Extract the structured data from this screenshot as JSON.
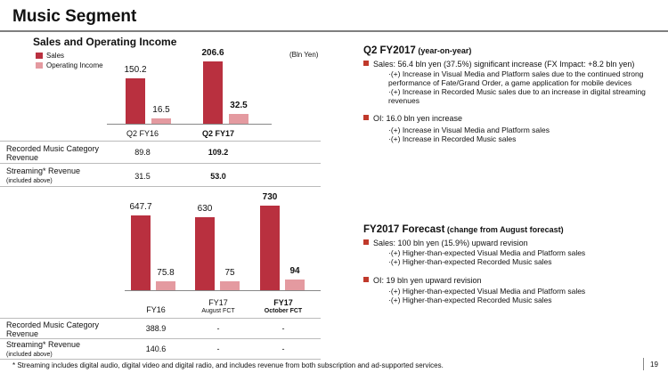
{
  "title": "Music Segment",
  "left_top": {
    "heading": "Sales and Operating Income",
    "unit": "(Bln Yen)",
    "legend": {
      "sales": "Sales",
      "oi": "Operating Income"
    },
    "colors": {
      "sales": "#b9303f",
      "oi": "#e49aa0"
    },
    "categories": [
      "Q2 FY16",
      "Q2 FY17"
    ],
    "rows": [
      {
        "label": "Recorded Music Category Revenue",
        "values": [
          "89.8",
          "109.2"
        ]
      },
      {
        "label": "Streaming* Revenue",
        "note": "(included above)",
        "values": [
          "31.5",
          "53.0"
        ]
      }
    ]
  },
  "left_bottom": {
    "categories": [
      "FY16",
      "FY17",
      "FY17"
    ],
    "cat_subs": [
      "",
      "August FCT",
      "October FCT"
    ],
    "rows": [
      {
        "label": "Recorded Music Category Revenue",
        "values": [
          "388.9",
          "-",
          "-"
        ]
      },
      {
        "label": "Streaming* Revenue",
        "note": "(included above)",
        "values": [
          "140.6",
          "-",
          "-"
        ]
      }
    ]
  },
  "chart_data": [
    {
      "type": "bar",
      "categories": [
        "Q2 FY16",
        "Q2 FY17"
      ],
      "series": [
        {
          "name": "Sales",
          "values": [
            150.2,
            206.6
          ]
        },
        {
          "name": "Operating Income",
          "values": [
            16.5,
            32.5
          ]
        }
      ],
      "labels": [
        "150.2",
        "206.6",
        "16.5",
        "32.5"
      ]
    },
    {
      "type": "bar",
      "categories": [
        "FY16",
        "FY17 August FCT",
        "FY17 October FCT"
      ],
      "series": [
        {
          "name": "Sales",
          "values": [
            647.7,
            630,
            730
          ]
        },
        {
          "name": "Operating Income",
          "values": [
            75.8,
            75,
            94
          ]
        }
      ],
      "labels": [
        "647.7",
        "630",
        "730",
        "75.8",
        "75",
        "94"
      ]
    }
  ],
  "right_top": {
    "heading": "Q2 FY2017",
    "heading_sub": " (year-on-year)",
    "sales_line": "Sales: 56.4 bln yen (37.5%) significant increase (FX Impact: +8.2 bln yen)",
    "sales_items": [
      "·(+) Increase in Visual Media and Platform sales due to the continued strong performance of Fate/Grand Order, a game application for mobile devices",
      "·(+) Increase in Recorded Music sales due to an increase in digital streaming revenues"
    ],
    "oi_line": "OI: 16.0 bln yen increase",
    "oi_items": [
      "·(+) Increase in Visual Media and Platform sales",
      "·(+) Increase in Recorded Music sales"
    ]
  },
  "right_bottom": {
    "heading": "FY2017 Forecast",
    "heading_sub": " (change from August forecast)",
    "sales_line": "Sales: 100 bln yen (15.9%) upward revision",
    "sales_items": [
      "·(+) Higher-than-expected Visual Media and Platform sales",
      "·(+) Higher-than-expected Recorded Music sales"
    ],
    "oi_line": "OI: 19 bln yen upward revision",
    "oi_items": [
      "·(+) Higher-than-expected Visual Media and Platform sales",
      "·(+) Higher-than-expected Recorded Music sales"
    ]
  },
  "footnote": "* Streaming includes digital audio, digital video and digital radio, and includes revenue from both subscription and ad-supported services.",
  "page_number": "19"
}
